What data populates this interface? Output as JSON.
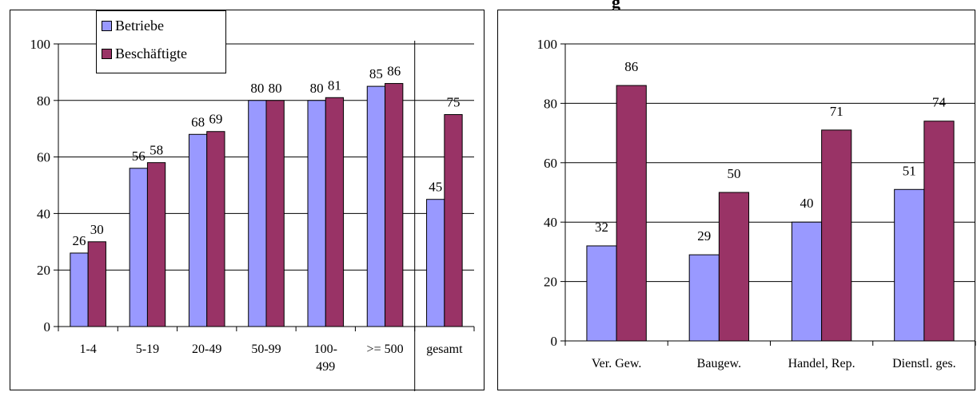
{
  "colors": {
    "betriebe": "#9999ff",
    "beschaeftigte": "#993366"
  },
  "legend": {
    "items": [
      "Betriebe",
      "Beschäftigte"
    ],
    "placement": "top-left"
  },
  "right_title_fragment": "g",
  "chart_data": [
    {
      "type": "bar",
      "categories": [
        "1-4",
        "5-19",
        "20-49",
        "50-99",
        "100-\n499",
        ">= 500",
        "gesamt"
      ],
      "series": [
        {
          "name": "Betriebe",
          "values": [
            26,
            56,
            68,
            80,
            80,
            85,
            45
          ]
        },
        {
          "name": "Beschäftigte",
          "values": [
            30,
            58,
            69,
            80,
            81,
            86,
            75
          ]
        }
      ],
      "ylim": [
        0,
        100
      ],
      "yticks": [
        0,
        20,
        40,
        60,
        80,
        100
      ],
      "grid": true,
      "separator_before_category": "gesamt"
    },
    {
      "type": "bar",
      "categories": [
        "Ver. Gew.",
        "Baugew.",
        "Handel,  Rep.",
        "Dienstl. ges."
      ],
      "series": [
        {
          "name": "Betriebe",
          "values": [
            32,
            29,
            40,
            51
          ]
        },
        {
          "name": "Beschäftigte",
          "values": [
            86,
            50,
            71,
            74
          ]
        }
      ],
      "ylim": [
        0,
        100
      ],
      "yticks": [
        0,
        20,
        40,
        60,
        80,
        100
      ],
      "grid": true
    }
  ]
}
